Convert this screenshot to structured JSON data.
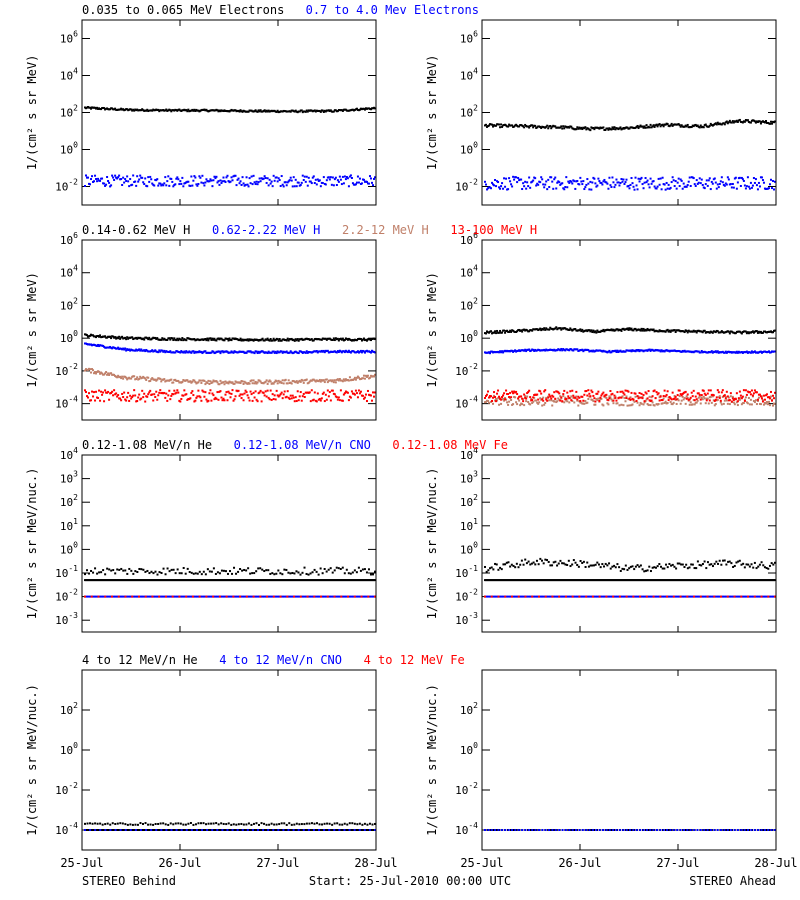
{
  "footer": {
    "left": "STEREO Behind",
    "center": "Start: 25-Jul-2010 00:00 UTC",
    "right": "STEREO Ahead"
  },
  "colors": {
    "black": "#000000",
    "blue": "#0000ff",
    "tan": "#c0806a",
    "red": "#ff0000"
  },
  "x_axis": {
    "tick_labels": [
      "25-Jul",
      "26-Jul",
      "27-Jul",
      "28-Jul"
    ],
    "range_days": [
      0,
      3
    ]
  },
  "chart_data": [
    {
      "type": "scatter",
      "row": 0,
      "title_labels": [
        {
          "text": "0.035 to 0.065 MeV Electrons",
          "color": "#000000"
        },
        {
          "text": "0.7 to 4.0 Mev Electrons",
          "color": "#0000ff"
        }
      ],
      "ylabel": "1/(cm² s sr MeV)",
      "yscale": "log",
      "ylim_exp": [
        -3,
        7
      ],
      "ytick_exps": [
        -2,
        0,
        2,
        4,
        6
      ],
      "behind": {
        "series": [
          {
            "color": "#000000",
            "level": 150,
            "profile": [
              180,
              140,
              130,
              128,
              120,
              115,
              120,
              170
            ],
            "scatter": 0.05,
            "density": 1
          },
          {
            "color": "#0000ff",
            "level": 0.02,
            "profile": [
              0.02,
              0.02
            ],
            "scatter": 0.3,
            "density": 1
          }
        ]
      },
      "ahead": {
        "series": [
          {
            "color": "#000000",
            "level": 20,
            "profile": [
              20,
              18,
              16,
              13,
              15,
              22,
              18,
              35,
              28
            ],
            "scatter": 0.08,
            "density": 1
          },
          {
            "color": "#0000ff",
            "level": 0.015,
            "profile": [
              0.015,
              0.015
            ],
            "scatter": 0.35,
            "density": 1
          }
        ]
      }
    },
    {
      "type": "scatter",
      "row": 1,
      "title_labels": [
        {
          "text": "0.14-0.62 MeV H",
          "color": "#000000"
        },
        {
          "text": "0.62-2.22 MeV H",
          "color": "#0000ff"
        },
        {
          "text": "2.2-12 MeV H",
          "color": "#c0806a"
        },
        {
          "text": "13-100 MeV H",
          "color": "#ff0000"
        }
      ],
      "ylabel": "1/(cm² s sr MeV)",
      "yscale": "log",
      "ylim_exp": [
        -5,
        6
      ],
      "ytick_exps": [
        -4,
        -2,
        0,
        2,
        4,
        6
      ],
      "behind": {
        "series": [
          {
            "color": "#000000",
            "level": 1.3,
            "profile": [
              1.5,
              1.0,
              0.9,
              0.85,
              0.8,
              0.8,
              0.85,
              0.8
            ],
            "scatter": 0.07,
            "density": 1
          },
          {
            "color": "#0000ff",
            "level": 0.2,
            "profile": [
              0.45,
              0.2,
              0.15,
              0.14,
              0.14,
              0.14,
              0.15,
              0.15
            ],
            "scatter": 0.06,
            "density": 1
          },
          {
            "color": "#c0806a",
            "level": 0.003,
            "profile": [
              0.012,
              0.004,
              0.0025,
              0.002,
              0.002,
              0.0022,
              0.0025,
              0.005
            ],
            "scatter": 0.12,
            "density": 1
          },
          {
            "color": "#ff0000",
            "level": 0.0003,
            "profile": [
              0.0003,
              0.0003
            ],
            "scatter": 0.35,
            "density": 1
          }
        ]
      },
      "ahead": {
        "series": [
          {
            "color": "#000000",
            "level": 2.5,
            "profile": [
              2.2,
              2.8,
              4.0,
              2.5,
              3.5,
              2.8,
              2.5,
              2.2,
              2.5
            ],
            "scatter": 0.07,
            "density": 1
          },
          {
            "color": "#0000ff",
            "level": 0.15,
            "profile": [
              0.13,
              0.18,
              0.2,
              0.15,
              0.18,
              0.15,
              0.14,
              0.14
            ],
            "scatter": 0.05,
            "density": 1
          },
          {
            "color": "#c0806a",
            "level": 0.00015,
            "profile": [
              0.00015,
              0.00015
            ],
            "scatter": 0.3,
            "density": 1
          },
          {
            "color": "#ff0000",
            "level": 0.0003,
            "profile": [
              0.0003,
              0.0003
            ],
            "scatter": 0.35,
            "density": 1
          }
        ]
      }
    },
    {
      "type": "scatter",
      "row": 2,
      "title_labels": [
        {
          "text": "0.12-1.08 MeV/n He",
          "color": "#000000"
        },
        {
          "text": "0.12-1.08 MeV/n CNO",
          "color": "#0000ff"
        },
        {
          "text": "0.12-1.08 MeV Fe",
          "color": "#ff0000"
        }
      ],
      "ylabel": "1/(cm² s sr MeV/nuc.)",
      "yscale": "log",
      "ylim_exp": [
        -3.5,
        4
      ],
      "ytick_exps": [
        -3,
        -2,
        -1,
        0,
        1,
        2,
        3,
        4
      ],
      "behind": {
        "series": [
          {
            "color": "#000000",
            "level": 0.05,
            "profile": [
              0.05,
              0.05
            ],
            "scatter": 0.0,
            "density": 1
          },
          {
            "color": "#000000",
            "level": 0.12,
            "profile": [
              0.12,
              0.12
            ],
            "scatter": 0.15,
            "density": 0.5
          },
          {
            "color": "#0000ff",
            "level": 0.01,
            "profile": [
              0.01,
              0.01
            ],
            "scatter": 0.0,
            "density": 0.6
          },
          {
            "color": "#ff0000",
            "level": 0.01,
            "profile": [
              0.01,
              0.01
            ],
            "scatter": 0.0,
            "density": 0.15
          }
        ]
      },
      "ahead": {
        "series": [
          {
            "color": "#000000",
            "level": 0.05,
            "profile": [
              0.05,
              0.05
            ],
            "scatter": 0.0,
            "density": 1
          },
          {
            "color": "#000000",
            "level": 0.15,
            "profile": [
              0.15,
              0.3,
              0.25,
              0.15,
              0.2,
              0.25,
              0.2
            ],
            "scatter": 0.15,
            "density": 0.6
          },
          {
            "color": "#0000ff",
            "level": 0.01,
            "profile": [
              0.01,
              0.01
            ],
            "scatter": 0.0,
            "density": 0.6
          },
          {
            "color": "#ff0000",
            "level": 0.01,
            "profile": [
              0.01,
              0.01
            ],
            "scatter": 0.0,
            "density": 0.15
          }
        ]
      }
    },
    {
      "type": "scatter",
      "row": 3,
      "title_labels": [
        {
          "text": "4 to 12 MeV/n He",
          "color": "#000000"
        },
        {
          "text": "4 to 12 MeV/n CNO",
          "color": "#0000ff"
        },
        {
          "text": "4 to 12 MeV Fe",
          "color": "#ff0000"
        }
      ],
      "ylabel": "1/(cm² s sr MeV/nuc.)",
      "yscale": "log",
      "ylim_exp": [
        -5,
        4
      ],
      "ytick_exps": [
        -4,
        -2,
        0,
        2
      ],
      "behind": {
        "series": [
          {
            "color": "#000000",
            "level": 0.0001,
            "profile": [
              0.0001,
              0.0001
            ],
            "scatter": 0.0,
            "density": 1
          },
          {
            "color": "#000000",
            "level": 0.0002,
            "profile": [
              0.0002,
              0.0002
            ],
            "scatter": 0.05,
            "density": 0.4
          },
          {
            "color": "#0000ff",
            "level": 0.0001,
            "profile": [
              0.0001,
              0.0001
            ],
            "scatter": 0.0,
            "density": 0.2
          }
        ]
      },
      "ahead": {
        "series": [
          {
            "color": "#000000",
            "level": 0.0001,
            "profile": [
              0.0001,
              0.0001
            ],
            "scatter": 0.0,
            "density": 0.35
          },
          {
            "color": "#0000ff",
            "level": 0.0001,
            "profile": [
              0.0001,
              0.0001
            ],
            "scatter": 0.0,
            "density": 0.3
          }
        ]
      }
    }
  ]
}
